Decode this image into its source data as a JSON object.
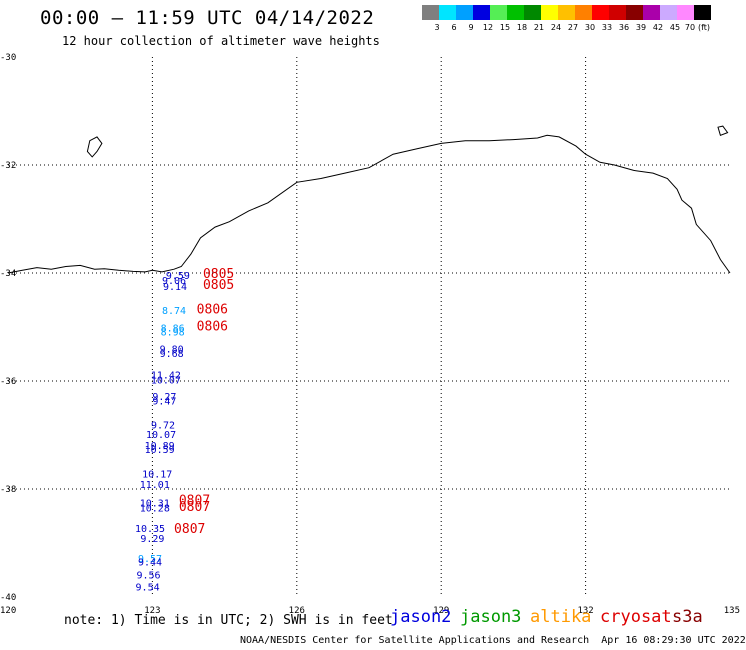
{
  "header": {
    "title": "00:00 – 11:59 UTC 04/14/2022",
    "subtitle": "12 hour collection of altimeter wave heights"
  },
  "color_scale": {
    "labels": [
      "3",
      "6",
      "9",
      "12",
      "15",
      "18",
      "21",
      "24",
      "27",
      "30",
      "33",
      "36",
      "39",
      "42",
      "45",
      "70",
      "(ft)"
    ],
    "colors": [
      "#7f7f7f",
      "#00e5ff",
      "#00a0ff",
      "#0000e0",
      "#55ee55",
      "#00c000",
      "#008800",
      "#ffff00",
      "#ffc000",
      "#ff8000",
      "#ff0000",
      "#d00000",
      "#880000",
      "#aa00aa",
      "#ccaaff",
      "#ff88ff",
      "#000000"
    ]
  },
  "axes": {
    "lon_labels": [
      "120",
      "123",
      "126",
      "129",
      "132",
      "135"
    ],
    "lat_labels": [
      "-30",
      "-32",
      "-34",
      "-36",
      "-38",
      "-40"
    ],
    "lon_range": [
      120,
      135
    ],
    "lat_range": [
      -40,
      -30
    ]
  },
  "wave_heights": [
    {
      "lon": 123.53,
      "lat": -34.06,
      "text": "9.59",
      "color": "#0000c8"
    },
    {
      "lon": 123.45,
      "lat": -34.15,
      "text": "9.06",
      "color": "#0000c8"
    },
    {
      "lon": 123.47,
      "lat": -34.26,
      "text": "9.14",
      "color": "#0000c8"
    },
    {
      "lon": 123.45,
      "lat": -34.7,
      "text": "8.74",
      "color": "#00a0ff"
    },
    {
      "lon": 123.42,
      "lat": -35.03,
      "text": "8.86",
      "color": "#00a0ff"
    },
    {
      "lon": 123.42,
      "lat": -35.1,
      "text": "8.98",
      "color": "#00a0ff"
    },
    {
      "lon": 123.4,
      "lat": -35.42,
      "text": "9.80",
      "color": "#0000c8"
    },
    {
      "lon": 123.4,
      "lat": -35.5,
      "text": "9.68",
      "color": "#0000c8"
    },
    {
      "lon": 123.28,
      "lat": -35.9,
      "text": "11.42",
      "color": "#0000c8"
    },
    {
      "lon": 123.28,
      "lat": -35.99,
      "text": "10.07",
      "color": "#0000c8"
    },
    {
      "lon": 123.25,
      "lat": -36.3,
      "text": "9.27",
      "color": "#0000c8"
    },
    {
      "lon": 123.25,
      "lat": -36.38,
      "text": "9.47",
      "color": "#0000c8"
    },
    {
      "lon": 123.22,
      "lat": -36.82,
      "text": "9.72",
      "color": "#0000c8"
    },
    {
      "lon": 123.18,
      "lat": -37.0,
      "text": "10.07",
      "color": "#0000c8"
    },
    {
      "lon": 123.15,
      "lat": -37.2,
      "text": "10.89",
      "color": "#0000c8"
    },
    {
      "lon": 123.15,
      "lat": -37.28,
      "text": "10.59",
      "color": "#0000c8"
    },
    {
      "lon": 123.1,
      "lat": -37.73,
      "text": "10.17",
      "color": "#0000c8"
    },
    {
      "lon": 123.05,
      "lat": -37.93,
      "text": "11.01",
      "color": "#0000c8"
    },
    {
      "lon": 123.05,
      "lat": -38.27,
      "text": "10.31",
      "color": "#0000c8"
    },
    {
      "lon": 123.05,
      "lat": -38.36,
      "text": "10.28",
      "color": "#0000c8"
    },
    {
      "lon": 122.95,
      "lat": -38.74,
      "text": "10.35",
      "color": "#0000c8"
    },
    {
      "lon": 123.0,
      "lat": -38.93,
      "text": "9.29",
      "color": "#0000c8"
    },
    {
      "lon": 122.95,
      "lat": -39.3,
      "text": "9.57",
      "color": "#00a0ff"
    },
    {
      "lon": 122.95,
      "lat": -39.36,
      "text": "9.44",
      "color": "#0000c8"
    },
    {
      "lon": 122.92,
      "lat": -39.6,
      "text": "9.56",
      "color": "#0000c8"
    },
    {
      "lon": 122.9,
      "lat": -39.82,
      "text": "9.54",
      "color": "#0000c8"
    }
  ],
  "pass_times": [
    {
      "lon": 124.05,
      "lat": -34.02,
      "text": "0805"
    },
    {
      "lon": 124.05,
      "lat": -34.22,
      "text": "0805"
    },
    {
      "lon": 123.92,
      "lat": -34.68,
      "text": "0806"
    },
    {
      "lon": 123.92,
      "lat": -34.99,
      "text": "0806"
    },
    {
      "lon": 123.55,
      "lat": -38.21,
      "text": "0807"
    },
    {
      "lon": 123.55,
      "lat": -38.33,
      "text": "0807"
    },
    {
      "lon": 123.45,
      "lat": -38.74,
      "text": "0807"
    }
  ],
  "footer": {
    "note": "note: 1) Time is in UTC; 2) SWH is in feet",
    "satellites": [
      {
        "name": "jason2",
        "color": "#0000dd"
      },
      {
        "name": "jason3",
        "color": "#009900"
      },
      {
        "name": "altika",
        "color": "#ff9900"
      },
      {
        "name": "cryosat",
        "color": "#dd0000"
      },
      {
        "name": "s3a",
        "color": "#880000"
      }
    ],
    "credit": "NOAA/NESDIS Center for Satellite Applications and Research",
    "timestamp": "Apr 16 08:29:30 UTC 2022"
  }
}
